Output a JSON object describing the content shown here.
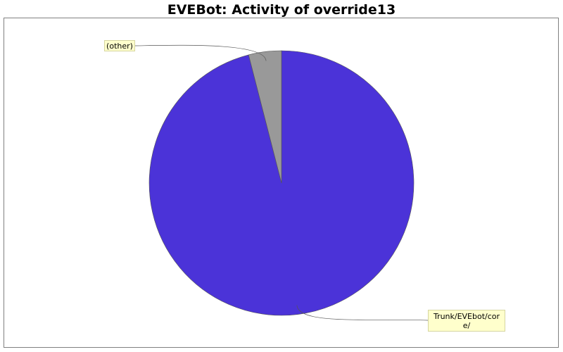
{
  "chart_data": {
    "type": "pie",
    "title": "EVEBot: Activity of override13",
    "slices": [
      {
        "label": "Trunk/EVEbot/core/",
        "value": 96,
        "color": "#4b33d8"
      },
      {
        "label": "(other)",
        "value": 4,
        "color": "#999999"
      }
    ],
    "start_angle_deg": 90,
    "direction": "clockwise"
  }
}
